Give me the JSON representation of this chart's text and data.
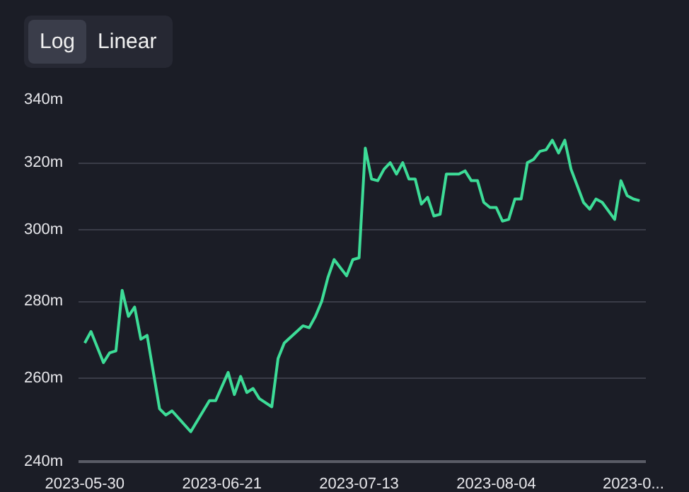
{
  "chart_data": {
    "type": "line",
    "annotations": [
      "Log",
      "Linear"
    ],
    "x": [
      "2023-05-30",
      "2023-05-31",
      "2023-06-02",
      "2023-06-03",
      "2023-06-04",
      "2023-06-05",
      "2023-06-06",
      "2023-06-07",
      "2023-06-08",
      "2023-06-09",
      "2023-06-11",
      "2023-06-12",
      "2023-06-13",
      "2023-06-16",
      "2023-06-19",
      "2023-06-20",
      "2023-06-22",
      "2023-06-23",
      "2023-06-24",
      "2023-06-25",
      "2023-06-26",
      "2023-06-27",
      "2023-06-29",
      "2023-06-30",
      "2023-07-01",
      "2023-07-04",
      "2023-07-05",
      "2023-07-06",
      "2023-07-07",
      "2023-07-08",
      "2023-07-09",
      "2023-07-11",
      "2023-07-12",
      "2023-07-13",
      "2023-07-14",
      "2023-07-15",
      "2023-07-16",
      "2023-07-17",
      "2023-07-18",
      "2023-07-19",
      "2023-07-20",
      "2023-07-21",
      "2023-07-22",
      "2023-07-23",
      "2023-07-24",
      "2023-07-25",
      "2023-07-26",
      "2023-07-27",
      "2023-07-29",
      "2023-07-30",
      "2023-07-31",
      "2023-08-01",
      "2023-08-02",
      "2023-08-03",
      "2023-08-04",
      "2023-08-05",
      "2023-08-06",
      "2023-08-07",
      "2023-08-08",
      "2023-08-09",
      "2023-08-10",
      "2023-08-11",
      "2023-08-12",
      "2023-08-13",
      "2023-08-14",
      "2023-08-15",
      "2023-08-16",
      "2023-08-18",
      "2023-08-19",
      "2023-08-20",
      "2023-08-21",
      "2023-08-23",
      "2023-08-24",
      "2023-08-25",
      "2023-08-26",
      "2023-08-27"
    ],
    "series": [
      {
        "color": "#3ddc97",
        "values": [
          269,
          272,
          264,
          266.5,
          267,
          283,
          276,
          278.5,
          270,
          271,
          252.5,
          251,
          252,
          247,
          254.5,
          254.5,
          261.5,
          256,
          260.5,
          256.5,
          257.5,
          255,
          253,
          265,
          269,
          273.5,
          273,
          276,
          280,
          286.5,
          291.5,
          287,
          291.5,
          292,
          324.5,
          315,
          314.5,
          318,
          320,
          316.5,
          320,
          315,
          315,
          307.5,
          309.5,
          304,
          304.5,
          316.5,
          316.5,
          317.5,
          314.5,
          314.5,
          308,
          306.5,
          306.5,
          302.5,
          303,
          309,
          309,
          320,
          321,
          323.5,
          324,
          327,
          323,
          327,
          318,
          308,
          306,
          309,
          308,
          303,
          314.5,
          310,
          309,
          308.5
        ]
      }
    ],
    "xlim": [
      "2023-05-29",
      "2023-08-28"
    ],
    "xticks": [
      "2023-05-30",
      "2023-06-21",
      "2023-07-13",
      "2023-08-04",
      {
        "value": "2023-08-26",
        "label": "2023-0..."
      }
    ],
    "ylim": [
      240,
      340
    ],
    "yticks": [
      {
        "value": 240,
        "label": "240m"
      },
      {
        "value": 260,
        "label": "260m"
      },
      {
        "value": 280,
        "label": "280m"
      },
      {
        "value": 300,
        "label": "300m"
      },
      {
        "value": 320,
        "label": "320m"
      },
      {
        "value": 340,
        "label": "340m"
      }
    ],
    "log": true,
    "grid": "y",
    "line_style": "solid",
    "marker": "none"
  }
}
